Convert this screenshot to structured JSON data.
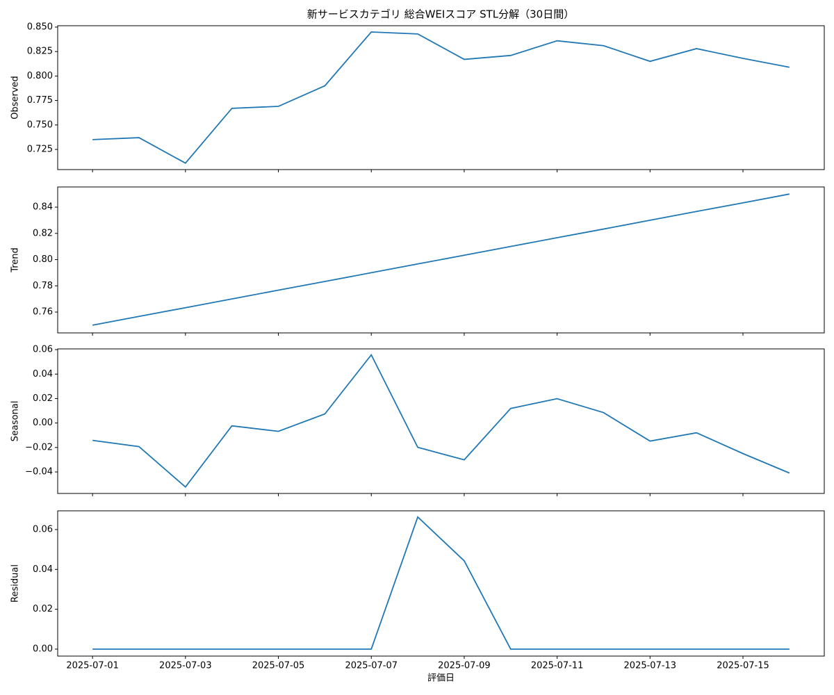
{
  "chart_data": [
    {
      "type": "line",
      "title": "新サービスカテゴリ 総合WEIスコア STL分解（30日間）",
      "ylabel": "Observed",
      "x": [
        "2025-07-01",
        "2025-07-02",
        "2025-07-03",
        "2025-07-04",
        "2025-07-05",
        "2025-07-06",
        "2025-07-07",
        "2025-07-08",
        "2025-07-09",
        "2025-07-10",
        "2025-07-11",
        "2025-07-12",
        "2025-07-13",
        "2025-07-14",
        "2025-07-15",
        "2025-07-16"
      ],
      "series": [
        {
          "color": "#1f77b4",
          "values": [
            0.735,
            0.737,
            0.711,
            0.767,
            0.769,
            0.79,
            0.845,
            0.843,
            0.817,
            0.821,
            0.836,
            0.831,
            0.815,
            0.828,
            0.818,
            0.809
          ]
        }
      ],
      "ylim": [
        0.7044,
        0.8514
      ],
      "yticks": [
        0.725,
        {
          "value": 0.75,
          "label": "0.750"
        },
        0.775,
        {
          "value": 0.8,
          "label": "0.800"
        },
        0.825,
        {
          "value": 0.85,
          "label": "0.850"
        }
      ],
      "xticks": [
        "2025-07-01",
        "2025-07-03",
        "2025-07-05",
        "2025-07-07",
        "2025-07-09",
        "2025-07-11",
        "2025-07-13",
        "2025-07-15"
      ]
    },
    {
      "type": "line",
      "ylabel": "Trend",
      "x": [
        "2025-07-01",
        "2025-07-02",
        "2025-07-03",
        "2025-07-04",
        "2025-07-05",
        "2025-07-06",
        "2025-07-07",
        "2025-07-08",
        "2025-07-09",
        "2025-07-10",
        "2025-07-11",
        "2025-07-12",
        "2025-07-13",
        "2025-07-14",
        "2025-07-15",
        "2025-07-16"
      ],
      "series": [
        {
          "color": "#1f77b4",
          "values": [
            0.75,
            0.7567,
            0.7633,
            0.77,
            0.7767,
            0.7833,
            0.79,
            0.7967,
            0.8033,
            0.81,
            0.8167,
            0.8233,
            0.83,
            0.8367,
            0.8433,
            0.85
          ]
        }
      ],
      "ylim": [
        0.7441,
        0.8554
      ],
      "yticks": [
        0.76,
        0.78,
        {
          "value": 0.8,
          "label": "0.80"
        },
        0.82,
        0.84
      ],
      "xticks": [
        "2025-07-01",
        "2025-07-03",
        "2025-07-05",
        "2025-07-07",
        "2025-07-09",
        "2025-07-11",
        "2025-07-13",
        "2025-07-15"
      ]
    },
    {
      "type": "line",
      "ylabel": "Seasonal",
      "x": [
        "2025-07-01",
        "2025-07-02",
        "2025-07-03",
        "2025-07-04",
        "2025-07-05",
        "2025-07-06",
        "2025-07-07",
        "2025-07-08",
        "2025-07-09",
        "2025-07-10",
        "2025-07-11",
        "2025-07-12",
        "2025-07-13",
        "2025-07-14",
        "2025-07-15",
        "2025-07-16"
      ],
      "series": [
        {
          "color": "#1f77b4",
          "values": [
            -0.0142,
            -0.0193,
            -0.0523,
            -0.0023,
            -0.0068,
            0.0074,
            0.0557,
            -0.0199,
            -0.0301,
            0.0119,
            0.0199,
            0.0085,
            -0.0148,
            -0.008,
            -0.025,
            -0.0409
          ]
        }
      ],
      "ylim": [
        -0.0576,
        0.0606
      ],
      "yticks": [
        {
          "value": -0.04,
          "label": "−0.04"
        },
        {
          "value": -0.02,
          "label": "−0.02"
        },
        {
          "value": 0,
          "label": "0.00"
        },
        0.02,
        0.04,
        0.06
      ],
      "xticks": [
        "2025-07-01",
        "2025-07-03",
        "2025-07-05",
        "2025-07-07",
        "2025-07-09",
        "2025-07-11",
        "2025-07-13",
        "2025-07-15"
      ]
    },
    {
      "type": "line",
      "ylabel": "Residual",
      "xlabel": "評価日",
      "x": [
        "2025-07-01",
        "2025-07-02",
        "2025-07-03",
        "2025-07-04",
        "2025-07-05",
        "2025-07-06",
        "2025-07-07",
        "2025-07-08",
        "2025-07-09",
        "2025-07-10",
        "2025-07-11",
        "2025-07-12",
        "2025-07-13",
        "2025-07-14",
        "2025-07-15",
        "2025-07-16"
      ],
      "series": [
        {
          "color": "#1f77b4",
          "values": [
            0,
            0,
            0,
            0,
            0,
            0,
            0,
            0.0663,
            0.0443,
            0,
            0,
            0,
            0,
            0,
            0,
            0
          ]
        }
      ],
      "ylim": [
        -0.0035,
        0.0694
      ],
      "yticks": [
        {
          "value": 0,
          "label": "0.00"
        },
        0.02,
        0.04,
        0.06
      ],
      "xticks": [
        "2025-07-01",
        "2025-07-03",
        "2025-07-05",
        "2025-07-07",
        "2025-07-09",
        "2025-07-11",
        "2025-07-13",
        "2025-07-15"
      ],
      "show_xtick_labels": true
    }
  ]
}
